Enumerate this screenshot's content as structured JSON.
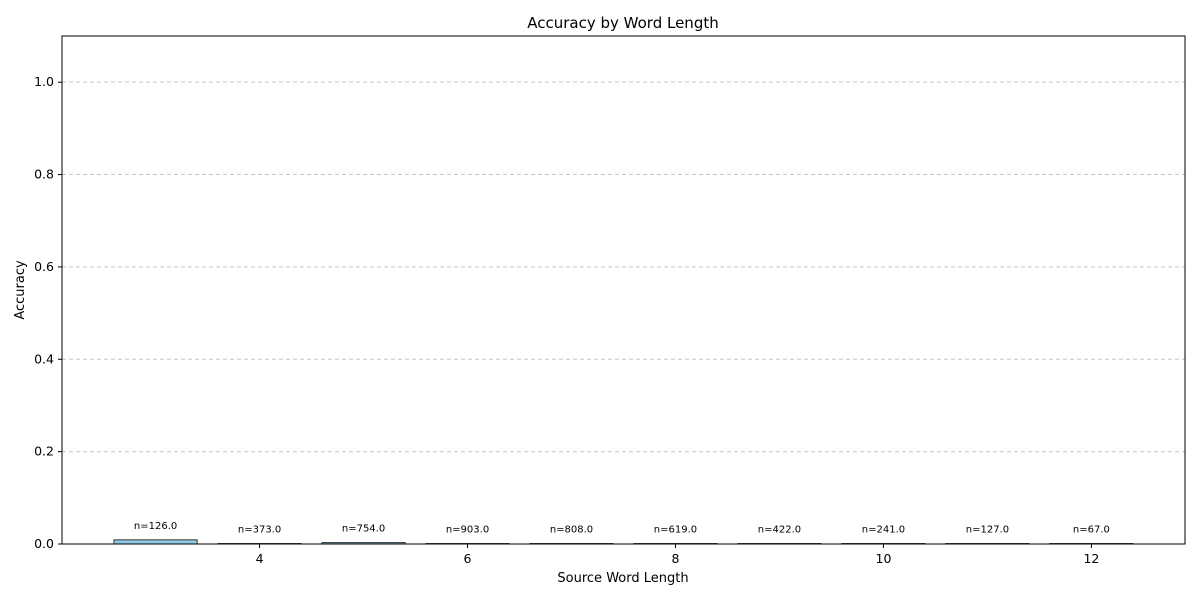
{
  "chart_data": {
    "type": "bar",
    "title": "Accuracy by Word Length",
    "xlabel": "Source Word Length",
    "ylabel": "Accuracy",
    "categories": [
      3,
      4,
      5,
      6,
      7,
      8,
      9,
      10,
      11,
      12
    ],
    "values": [
      0.009,
      0.001,
      0.003,
      0.001,
      0.001,
      0.001,
      0.001,
      0.001,
      0.001,
      0.001
    ],
    "data_labels": [
      "n=126.0",
      "n=373.0",
      "n=754.0",
      "n=903.0",
      "n=808.0",
      "n=619.0",
      "n=422.0",
      "n=241.0",
      "n=127.0",
      "n=67.0"
    ],
    "xlim": [
      2.1,
      12.9
    ],
    "ylim": [
      0,
      1.1
    ],
    "xticks": [
      4,
      6,
      8,
      10,
      12
    ],
    "xtick_labels": [
      "4",
      "6",
      "8",
      "10",
      "12"
    ],
    "yticks": [
      0.0,
      0.2,
      0.4,
      0.6,
      0.8,
      1.0
    ],
    "ytick_labels": [
      "0.0",
      "0.2",
      "0.4",
      "0.6",
      "0.8",
      "1.0"
    ],
    "grid": "y-dashed",
    "bar_color": "#8ecae6",
    "edge_color": "#333333"
  }
}
